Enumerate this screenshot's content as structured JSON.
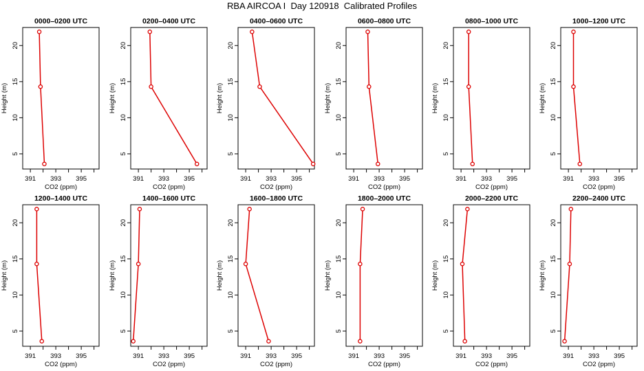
{
  "title": "RBA AIRCOA I  Day 120918  Calibrated Profiles",
  "colors": {
    "series": "#dd0000",
    "axis": "#000000"
  },
  "chart_data": [
    {
      "type": "line",
      "title": "0000–0200 UTC",
      "xlabel": "CO2 (ppm)",
      "ylabel": "Height (m)",
      "xlim": [
        390.4,
        396.4
      ],
      "ylim": [
        2.9,
        22.5
      ],
      "xticks": [
        391,
        393,
        395
      ],
      "yticks": [
        5,
        10,
        15,
        20
      ],
      "points": [
        {
          "x": 391.7,
          "y": 21.9
        },
        {
          "x": 391.8,
          "y": 14.3
        },
        {
          "x": 392.1,
          "y": 3.6
        }
      ]
    },
    {
      "type": "line",
      "title": "0200–0400 UTC",
      "xlabel": "CO2 (ppm)",
      "ylabel": "Height (m)",
      "xlim": [
        390.4,
        396.4
      ],
      "ylim": [
        2.9,
        22.5
      ],
      "xticks": [
        391,
        393,
        395
      ],
      "yticks": [
        5,
        10,
        15,
        20
      ],
      "points": [
        {
          "x": 391.9,
          "y": 21.9
        },
        {
          "x": 392.0,
          "y": 14.3
        },
        {
          "x": 395.6,
          "y": 3.6
        }
      ]
    },
    {
      "type": "line",
      "title": "0400–0600 UTC",
      "xlabel": "CO2 (ppm)",
      "ylabel": "Height (m)",
      "xlim": [
        390.4,
        396.4
      ],
      "ylim": [
        2.9,
        22.5
      ],
      "xticks": [
        391,
        393,
        395
      ],
      "yticks": [
        5,
        10,
        15,
        20
      ],
      "points": [
        {
          "x": 391.5,
          "y": 21.9
        },
        {
          "x": 392.1,
          "y": 14.3
        },
        {
          "x": 396.3,
          "y": 3.6
        }
      ]
    },
    {
      "type": "line",
      "title": "0600–0800 UTC",
      "xlabel": "CO2 (ppm)",
      "ylabel": "Height (m)",
      "xlim": [
        390.4,
        396.4
      ],
      "ylim": [
        2.9,
        22.5
      ],
      "xticks": [
        391,
        393,
        395
      ],
      "yticks": [
        5,
        10,
        15,
        20
      ],
      "points": [
        {
          "x": 392.1,
          "y": 21.9
        },
        {
          "x": 392.2,
          "y": 14.3
        },
        {
          "x": 392.9,
          "y": 3.6
        }
      ]
    },
    {
      "type": "line",
      "title": "0800–1000 UTC",
      "xlabel": "CO2 (ppm)",
      "ylabel": "Height (m)",
      "xlim": [
        390.4,
        396.4
      ],
      "ylim": [
        2.9,
        22.5
      ],
      "xticks": [
        391,
        393,
        395
      ],
      "yticks": [
        5,
        10,
        15,
        20
      ],
      "points": [
        {
          "x": 391.6,
          "y": 21.9
        },
        {
          "x": 391.6,
          "y": 14.3
        },
        {
          "x": 391.9,
          "y": 3.6
        }
      ]
    },
    {
      "type": "line",
      "title": "1000–1200 UTC",
      "xlabel": "CO2 (ppm)",
      "ylabel": "Height (m)",
      "xlim": [
        390.4,
        396.4
      ],
      "ylim": [
        2.9,
        22.5
      ],
      "xticks": [
        391,
        393,
        395
      ],
      "yticks": [
        5,
        10,
        15,
        20
      ],
      "points": [
        {
          "x": 391.4,
          "y": 21.9
        },
        {
          "x": 391.4,
          "y": 14.3
        },
        {
          "x": 391.9,
          "y": 3.6
        }
      ]
    },
    {
      "type": "line",
      "title": "1200–1400 UTC",
      "xlabel": "CO2 (ppm)",
      "ylabel": "Height (m)",
      "xlim": [
        390.4,
        396.4
      ],
      "ylim": [
        2.9,
        22.5
      ],
      "xticks": [
        391,
        393,
        395
      ],
      "yticks": [
        5,
        10,
        15,
        20
      ],
      "points": [
        {
          "x": 391.5,
          "y": 21.9
        },
        {
          "x": 391.5,
          "y": 14.3
        },
        {
          "x": 391.9,
          "y": 3.6
        }
      ]
    },
    {
      "type": "line",
      "title": "1400–1600 UTC",
      "xlabel": "CO2 (ppm)",
      "ylabel": "Height (m)",
      "xlim": [
        390.4,
        396.4
      ],
      "ylim": [
        2.9,
        22.5
      ],
      "xticks": [
        391,
        393,
        395
      ],
      "yticks": [
        5,
        10,
        15,
        20
      ],
      "points": [
        {
          "x": 391.1,
          "y": 21.9
        },
        {
          "x": 391.0,
          "y": 14.3
        },
        {
          "x": 390.6,
          "y": 3.6
        }
      ]
    },
    {
      "type": "line",
      "title": "1600–1800 UTC",
      "xlabel": "CO2 (ppm)",
      "ylabel": "Height (m)",
      "xlim": [
        390.4,
        396.4
      ],
      "ylim": [
        2.9,
        22.5
      ],
      "xticks": [
        391,
        393,
        395
      ],
      "yticks": [
        5,
        10,
        15,
        20
      ],
      "points": [
        {
          "x": 391.3,
          "y": 21.9
        },
        {
          "x": 391.0,
          "y": 14.3
        },
        {
          "x": 392.8,
          "y": 3.6
        }
      ]
    },
    {
      "type": "line",
      "title": "1800–2000 UTC",
      "xlabel": "CO2 (ppm)",
      "ylabel": "Height (m)",
      "xlim": [
        390.4,
        396.4
      ],
      "ylim": [
        2.9,
        22.5
      ],
      "xticks": [
        391,
        393,
        395
      ],
      "yticks": [
        5,
        10,
        15,
        20
      ],
      "points": [
        {
          "x": 391.7,
          "y": 21.9
        },
        {
          "x": 391.5,
          "y": 14.3
        },
        {
          "x": 391.5,
          "y": 3.6
        }
      ]
    },
    {
      "type": "line",
      "title": "2000–2200 UTC",
      "xlabel": "CO2 (ppm)",
      "ylabel": "Height (m)",
      "xlim": [
        390.4,
        396.4
      ],
      "ylim": [
        2.9,
        22.5
      ],
      "xticks": [
        391,
        393,
        395
      ],
      "yticks": [
        5,
        10,
        15,
        20
      ],
      "points": [
        {
          "x": 391.5,
          "y": 21.9
        },
        {
          "x": 391.1,
          "y": 14.3
        },
        {
          "x": 391.3,
          "y": 3.6
        }
      ]
    },
    {
      "type": "line",
      "title": "2200–2400 UTC",
      "xlabel": "CO2 (ppm)",
      "ylabel": "Height (m)",
      "xlim": [
        390.4,
        396.4
      ],
      "ylim": [
        2.9,
        22.5
      ],
      "xticks": [
        391,
        393,
        395
      ],
      "yticks": [
        5,
        10,
        15,
        20
      ],
      "points": [
        {
          "x": 391.2,
          "y": 21.9
        },
        {
          "x": 391.1,
          "y": 14.3
        },
        {
          "x": 390.7,
          "y": 3.6
        }
      ]
    }
  ]
}
